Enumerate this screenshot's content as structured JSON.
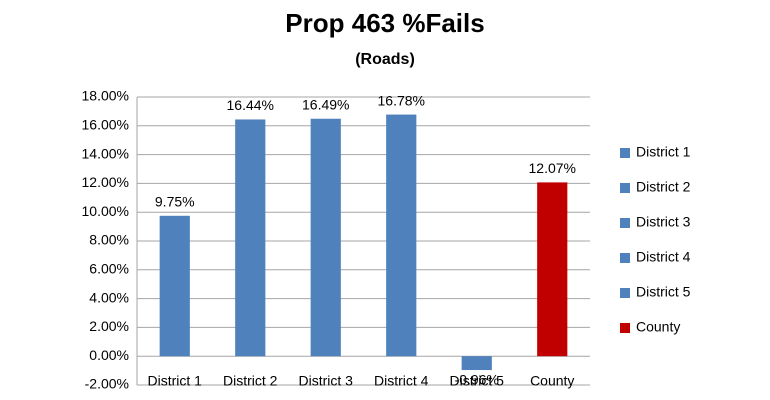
{
  "chart_data": {
    "type": "bar",
    "title": "Prop 463 %Fails",
    "subtitle": "(Roads)",
    "categories": [
      "District 1",
      "District 2",
      "District 3",
      "District 4",
      "District 5",
      "County"
    ],
    "values": [
      9.75,
      16.44,
      16.49,
      16.78,
      -0.96,
      12.07
    ],
    "value_labels": [
      "9.75%",
      "16.44%",
      "16.49%",
      "16.78%",
      "-0.96%",
      "12.07%"
    ],
    "colors": [
      "#4f81bd",
      "#4f81bd",
      "#4f81bd",
      "#4f81bd",
      "#4f81bd",
      "#c00000"
    ],
    "ylim": [
      -2,
      18
    ],
    "yticks": [
      {
        "value": -2,
        "label": "-2.00%"
      },
      {
        "value": 0,
        "label": "0.00%"
      },
      {
        "value": 2,
        "label": "2.00%"
      },
      {
        "value": 4,
        "label": "4.00%"
      },
      {
        "value": 6,
        "label": "6.00%"
      },
      {
        "value": 8,
        "label": "8.00%"
      },
      {
        "value": 10,
        "label": "10.00%"
      },
      {
        "value": 12,
        "label": "12.00%"
      },
      {
        "value": 14,
        "label": "14.00%"
      },
      {
        "value": 16,
        "label": "16.00%"
      },
      {
        "value": 18,
        "label": "18.00%"
      }
    ],
    "grid": true,
    "legend": "right"
  }
}
